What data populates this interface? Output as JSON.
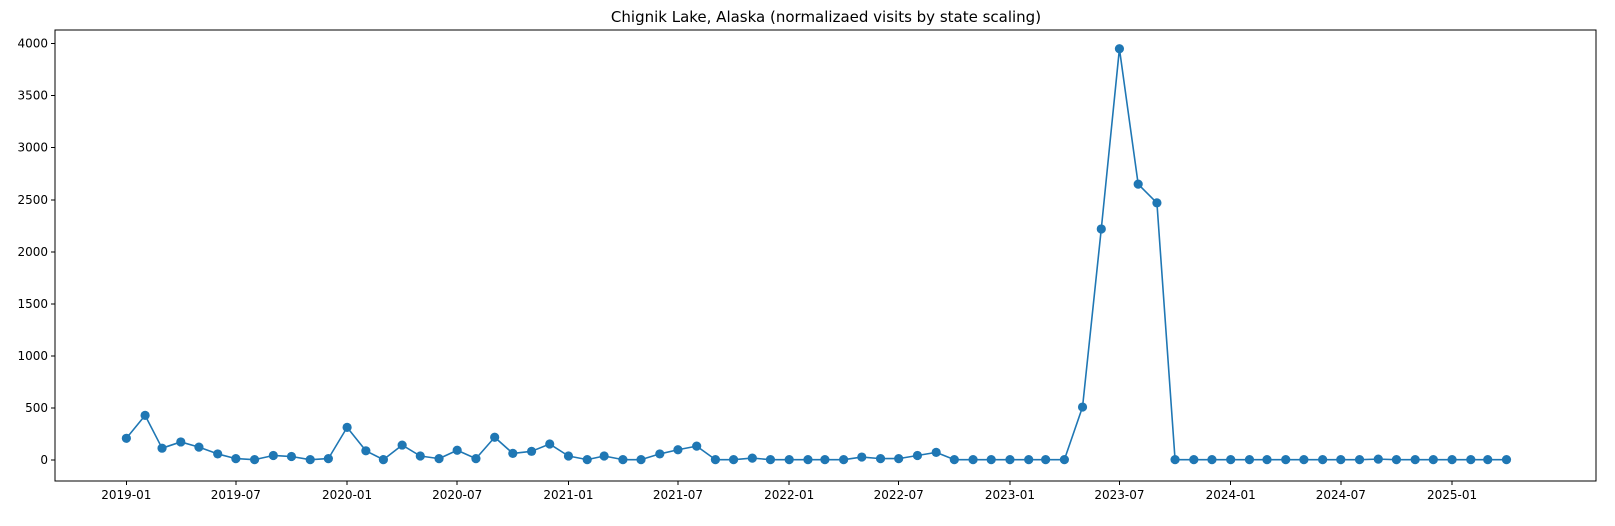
{
  "chart_data": {
    "type": "line",
    "title": "Chignik Lake, Alaska (normalizaed visits by state scaling)",
    "xlabel": "",
    "ylabel": "",
    "x_range": [
      "2018-09-05",
      "2025-08-27"
    ],
    "ylim": [
      -200,
      4130
    ],
    "y_ticks": [
      0,
      500,
      1000,
      1500,
      2000,
      2500,
      3000,
      3500,
      4000
    ],
    "x_ticks": [
      "2019-01",
      "2019-07",
      "2020-01",
      "2020-07",
      "2021-01",
      "2021-07",
      "2022-01",
      "2022-07",
      "2023-01",
      "2023-07",
      "2024-01",
      "2024-07",
      "2025-01"
    ],
    "grid": false,
    "markers": true,
    "color": "#1f77b4",
    "series": [
      {
        "x": [
          "2019-01-01",
          "2019-02-01",
          "2019-03-01",
          "2019-04-01",
          "2019-05-01",
          "2019-06-01",
          "2019-07-01",
          "2019-08-01",
          "2019-09-01",
          "2019-10-01",
          "2019-11-01",
          "2019-12-01",
          "2020-01-01",
          "2020-02-01",
          "2020-03-01",
          "2020-04-01",
          "2020-05-01",
          "2020-06-01",
          "2020-07-01",
          "2020-08-01",
          "2020-09-01",
          "2020-10-01",
          "2020-11-01",
          "2020-12-01",
          "2021-01-01",
          "2021-02-01",
          "2021-03-01",
          "2021-04-01",
          "2021-05-01",
          "2021-06-01",
          "2021-07-01",
          "2021-08-01",
          "2021-09-01",
          "2021-10-01",
          "2021-11-01",
          "2021-12-01",
          "2022-01-01",
          "2022-02-01",
          "2022-03-01",
          "2022-04-01",
          "2022-05-01",
          "2022-06-01",
          "2022-07-01",
          "2022-08-01",
          "2022-09-01",
          "2022-10-01",
          "2022-11-01",
          "2022-12-01",
          "2023-01-01",
          "2023-02-01",
          "2023-03-01",
          "2023-04-01",
          "2023-05-01",
          "2023-06-01",
          "2023-07-01",
          "2023-08-01",
          "2023-09-01",
          "2023-10-01",
          "2023-11-01",
          "2023-12-01",
          "2024-01-01",
          "2024-02-01",
          "2024-03-01",
          "2024-04-01",
          "2024-05-01",
          "2024-06-01",
          "2024-07-01",
          "2024-08-01",
          "2024-09-01",
          "2024-10-01",
          "2024-11-01",
          "2024-12-01",
          "2025-01-01",
          "2025-02-01",
          "2025-03-01",
          "2025-04-01"
        ],
        "y": [
          210,
          430,
          115,
          175,
          125,
          60,
          15,
          5,
          45,
          35,
          5,
          15,
          315,
          90,
          5,
          145,
          40,
          15,
          95,
          15,
          220,
          65,
          85,
          155,
          40,
          5,
          40,
          5,
          5,
          60,
          100,
          135,
          5,
          5,
          20,
          5,
          5,
          5,
          5,
          5,
          30,
          15,
          15,
          45,
          75,
          5,
          5,
          5,
          5,
          5,
          5,
          5,
          510,
          2220,
          3950,
          2650,
          2470,
          5,
          5,
          5,
          5,
          5,
          5,
          5,
          5,
          5,
          5,
          5,
          10,
          5,
          5,
          5,
          5,
          5,
          5,
          5
        ]
      }
    ]
  }
}
